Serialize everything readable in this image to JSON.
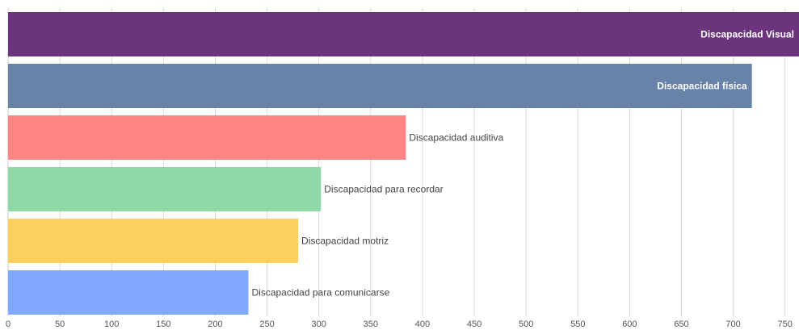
{
  "chart_data": {
    "type": "bar",
    "orientation": "horizontal",
    "title": "",
    "xlabel": "",
    "ylabel": "",
    "xlim": [
      0,
      765
    ],
    "x_ticks": [
      0,
      50,
      100,
      150,
      200,
      250,
      300,
      350,
      400,
      450,
      500,
      550,
      600,
      650,
      700,
      750
    ],
    "grid": true,
    "categories": [
      "Discapacidad Visual",
      "Discapacidad física",
      "Discapacidad auditiva",
      "Discapacidad para recordar",
      "Discapacidad motriz",
      "Discapacidad para comunicarse"
    ],
    "values": [
      770,
      718,
      384,
      302,
      280,
      232
    ],
    "colors": [
      "#6b347c",
      "#6882a8",
      "#ff8585",
      "#8fd8a8",
      "#fcd05d",
      "#80a8ff"
    ]
  }
}
